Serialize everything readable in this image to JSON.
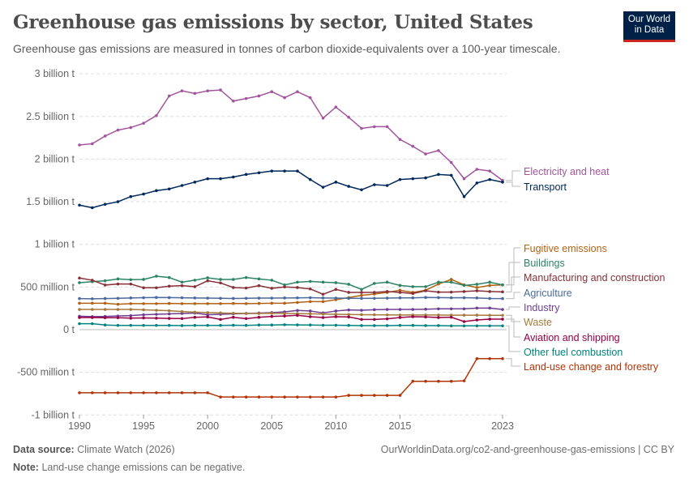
{
  "title": "Greenhouse gas emissions by sector, United States",
  "subtitle": "Greenhouse gas emissions are measured in tonnes of carbon dioxide-equivalents over a 100-year timescale.",
  "logo": "Our World in Data",
  "footer": {
    "source_label": "Data source:",
    "source": "Climate Watch (2026)",
    "url": "OurWorldinData.org/co2-and-greenhouse-gas-emissions | CC BY",
    "note_label": "Note:",
    "note": "Land-use change emissions can be negative."
  },
  "chart_data": {
    "type": "line",
    "title": "Greenhouse gas emissions by sector, United States",
    "ylabel": "",
    "xlabel": "",
    "ylim": [
      -1000000000,
      3000000000
    ],
    "yticks": [
      {
        "v": 3000000000,
        "label": "3 billion t"
      },
      {
        "v": 2500000000,
        "label": "2.5 billion t"
      },
      {
        "v": 2000000000,
        "label": "2 billion t"
      },
      {
        "v": 1500000000,
        "label": "1.5 billion t"
      },
      {
        "v": 1000000000,
        "label": "1 billion t"
      },
      {
        "v": 500000000,
        "label": "500 million t"
      },
      {
        "v": 0,
        "label": "0 t"
      },
      {
        "v": -500000000,
        "label": "-500 million t"
      },
      {
        "v": -1000000000,
        "label": "-1 billion t"
      }
    ],
    "xticks": [
      1990,
      1995,
      2000,
      2005,
      2010,
      2015,
      2023
    ],
    "grid": "horizontal dashed",
    "legend": "right, direct labels",
    "x": [
      1990,
      1991,
      1992,
      1993,
      1994,
      1995,
      1996,
      1997,
      1998,
      1999,
      2000,
      2001,
      2002,
      2003,
      2004,
      2005,
      2006,
      2007,
      2008,
      2009,
      2010,
      2011,
      2012,
      2013,
      2014,
      2015,
      2016,
      2017,
      2018,
      2019,
      2020,
      2021,
      2022,
      2023
    ],
    "units": "million t",
    "series": [
      {
        "name": "Electricity and heat",
        "color": "#a2559c",
        "values": [
          2165,
          2180,
          2270,
          2340,
          2370,
          2420,
          2510,
          2740,
          2800,
          2770,
          2800,
          2810,
          2680,
          2710,
          2740,
          2790,
          2720,
          2790,
          2720,
          2480,
          2610,
          2490,
          2360,
          2380,
          2380,
          2230,
          2150,
          2060,
          2100,
          1960,
          1770,
          1880,
          1860,
          1750
        ]
      },
      {
        "name": "Transport",
        "color": "#00295b",
        "values": [
          1460,
          1430,
          1470,
          1500,
          1560,
          1590,
          1630,
          1650,
          1690,
          1730,
          1770,
          1770,
          1790,
          1820,
          1840,
          1860,
          1860,
          1860,
          1760,
          1670,
          1730,
          1680,
          1640,
          1700,
          1690,
          1760,
          1770,
          1780,
          1820,
          1810,
          1560,
          1720,
          1760,
          1730
        ]
      },
      {
        "name": "Fugitive emissions",
        "color": "#b16214",
        "values": [
          310,
          310,
          310,
          298,
          305,
          305,
          305,
          308,
          305,
          305,
          305,
          305,
          308,
          305,
          308,
          310,
          310,
          319,
          329,
          329,
          351,
          376,
          402,
          418,
          437,
          462,
          437,
          462,
          535,
          589,
          525,
          494,
          519,
          525
        ]
      },
      {
        "name": "Buildings",
        "color": "#2c8465",
        "values": [
          551,
          563,
          573,
          595,
          586,
          589,
          627,
          611,
          557,
          580,
          608,
          589,
          589,
          611,
          595,
          580,
          525,
          557,
          566,
          557,
          551,
          532,
          472,
          542,
          557,
          519,
          504,
          504,
          557,
          557,
          519,
          532,
          557,
          525
        ]
      },
      {
        "name": "Manufacturing and construction",
        "color": "#883039",
        "values": [
          605,
          580,
          523,
          535,
          535,
          491,
          491,
          510,
          516,
          504,
          573,
          548,
          494,
          488,
          516,
          485,
          501,
          494,
          478,
          415,
          472,
          437,
          437,
          437,
          447,
          437,
          424,
          456,
          440,
          440,
          447,
          456,
          447,
          443
        ]
      },
      {
        "name": "Agriculture",
        "color": "#4c6a9c",
        "values": [
          365,
          362,
          365,
          368,
          372,
          375,
          378,
          376,
          374,
          372,
          370,
          368,
          366,
          368,
          370,
          370,
          372,
          373,
          375,
          372,
          370,
          368,
          367,
          368,
          370,
          373,
          373,
          378,
          376,
          374,
          375,
          372,
          366,
          365
        ]
      },
      {
        "name": "Industry",
        "color": "#6d3e91",
        "values": [
          158,
          153,
          155,
          160,
          165,
          175,
          180,
          185,
          190,
          195,
          175,
          180,
          185,
          190,
          195,
          200,
          209,
          225,
          219,
          196,
          219,
          231,
          228,
          234,
          237,
          237,
          237,
          240,
          244,
          244,
          244,
          253,
          253,
          237
        ]
      },
      {
        "name": "Waste",
        "color": "#a57a3c",
        "values": [
          237,
          237,
          237,
          237,
          237,
          233,
          228,
          222,
          212,
          205,
          200,
          196,
          192,
          190,
          190,
          192,
          190,
          188,
          186,
          183,
          180,
          178,
          176,
          175,
          173,
          172,
          172,
          172,
          172,
          170,
          170,
          170,
          168,
          168
        ]
      },
      {
        "name": "Aviation and shipping",
        "color": "#970046",
        "values": [
          142,
          142,
          140,
          140,
          135,
          138,
          135,
          132,
          130,
          145,
          150,
          120,
          145,
          130,
          145,
          155,
          160,
          168,
          152,
          142,
          152,
          149,
          120,
          120,
          127,
          142,
          152,
          149,
          142,
          146,
          95,
          114,
          124,
          124
        ]
      },
      {
        "name": "Other fuel combustion",
        "color": "#00847e",
        "values": [
          70,
          70,
          55,
          50,
          50,
          50,
          50,
          50,
          48,
          50,
          50,
          50,
          52,
          50,
          55,
          55,
          58,
          56,
          55,
          52,
          52,
          50,
          48,
          48,
          48,
          50,
          50,
          48,
          48,
          45,
          45,
          45,
          45,
          45
        ]
      },
      {
        "name": "Land-use change and forestry",
        "color": "#b13507",
        "values": [
          -740,
          -740,
          -740,
          -740,
          -740,
          -740,
          -740,
          -740,
          -740,
          -740,
          -740,
          -790,
          -790,
          -790,
          -790,
          -790,
          -790,
          -790,
          -790,
          -790,
          -790,
          -770,
          -770,
          -770,
          -770,
          -770,
          -605,
          -605,
          -605,
          -605,
          -600,
          -340,
          -340,
          -340
        ]
      }
    ]
  }
}
